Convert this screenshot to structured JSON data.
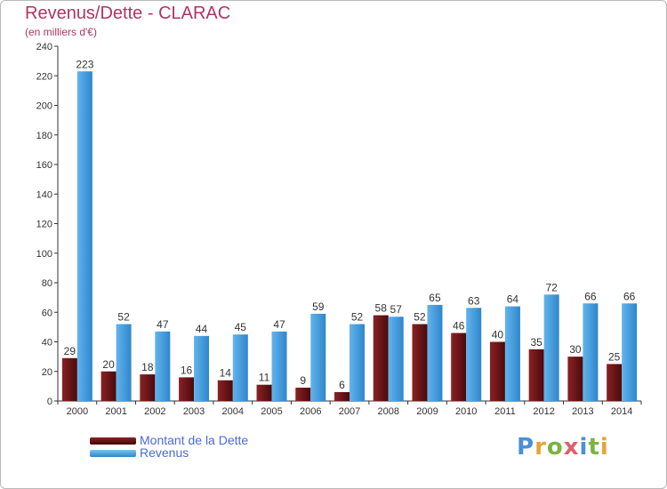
{
  "title": "Revenus/Dette - CLARAC",
  "subtitle": "(en milliers d'€)",
  "colors": {
    "title": "#b03562",
    "debt": "#7a1a1c",
    "debt_dark": "#4a0a0c",
    "revenue": "#5aaee8",
    "revenue_dark": "#2e86cc",
    "legend_text": "#4a6bd6",
    "axis": "#333333",
    "grid": "#eeeeee"
  },
  "legend": {
    "debt_label": "Montant de la Dette",
    "revenue_label": "Revenus"
  },
  "brand": {
    "text": "Proxiti",
    "letter_colors": [
      "#4a90d9",
      "#e8a33a",
      "#7cb342",
      "#e35d6a",
      "#4a90d9",
      "#7cb342",
      "#e8a33a"
    ]
  },
  "chart_data": {
    "type": "bar",
    "categories": [
      "2000",
      "2001",
      "2002",
      "2003",
      "2004",
      "2005",
      "2006",
      "2007",
      "2008",
      "2009",
      "2010",
      "2011",
      "2012",
      "2013",
      "2014"
    ],
    "series": [
      {
        "name": "Montant de la Dette",
        "values": [
          29,
          20,
          18,
          16,
          14,
          11,
          9,
          6,
          58,
          52,
          46,
          40,
          35,
          30,
          25
        ]
      },
      {
        "name": "Revenus",
        "values": [
          223,
          52,
          47,
          44,
          45,
          47,
          59,
          52,
          57,
          65,
          63,
          64,
          72,
          66,
          66
        ]
      }
    ],
    "title": "Revenus/Dette - CLARAC",
    "subtitle": "(en milliers d'€)",
    "xlabel": "",
    "ylabel": "",
    "ylim": [
      0,
      240
    ],
    "yticks": [
      0,
      20,
      40,
      60,
      80,
      100,
      120,
      140,
      160,
      180,
      200,
      220,
      240
    ],
    "data_labels": true,
    "legend_position": "bottom-left",
    "grid": false
  }
}
